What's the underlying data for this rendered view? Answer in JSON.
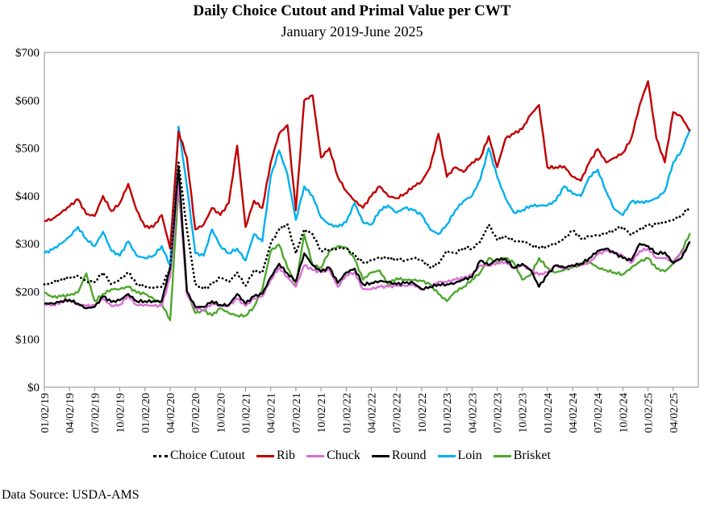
{
  "chart_data": {
    "type": "line",
    "title": "Daily Choice Cutout and Primal Value per CWT",
    "subtitle": "January 2019-June 2025",
    "xlabel": "",
    "ylabel": "",
    "ylim": [
      0,
      700
    ],
    "yticks": [
      "$0",
      "$100",
      "$200",
      "$300",
      "$400",
      "$500",
      "$600",
      "$700"
    ],
    "xlim": [
      "2019-01-02",
      "2025-06-30"
    ],
    "xticks": [
      "01/02/19",
      "04/02/19",
      "07/02/19",
      "10/02/19",
      "01/02/20",
      "04/02/20",
      "07/02/20",
      "10/02/20",
      "01/02/21",
      "04/02/21",
      "07/02/21",
      "10/02/21",
      "01/02/22",
      "04/02/22",
      "07/02/22",
      "10/02/22",
      "01/02/23",
      "04/02/23",
      "07/02/23",
      "10/02/23",
      "01/02/24",
      "04/02/24",
      "07/02/24",
      "10/02/24",
      "01/02/25",
      "04/02/25"
    ],
    "grid": false,
    "legend_position": "bottom",
    "x_start_month": "2019-01",
    "x_resolution": "monthly (approximate)",
    "series": [
      {
        "name": "Choice Cutout",
        "color": "#000000",
        "style": "dotted",
        "values": [
          215,
          218,
          225,
          228,
          233,
          222,
          220,
          240,
          215,
          225,
          240,
          215,
          210,
          208,
          210,
          250,
          470,
          330,
          215,
          205,
          215,
          230,
          220,
          240,
          212,
          245,
          240,
          300,
          330,
          340,
          280,
          330,
          320,
          285,
          288,
          290,
          290,
          275,
          260,
          265,
          272,
          270,
          268,
          265,
          270,
          265,
          250,
          258,
          285,
          280,
          292,
          290,
          305,
          340,
          308,
          315,
          305,
          305,
          298,
          292,
          295,
          300,
          310,
          328,
          310,
          315,
          318,
          322,
          330,
          335,
          318,
          330,
          338,
          340,
          345,
          350,
          360,
          378
        ]
      },
      {
        "name": "Rib",
        "color": "#C00000",
        "style": "solid",
        "values": [
          348,
          352,
          365,
          378,
          393,
          362,
          358,
          400,
          368,
          385,
          425,
          370,
          335,
          335,
          360,
          290,
          535,
          480,
          330,
          340,
          375,
          360,
          385,
          505,
          335,
          390,
          375,
          470,
          530,
          548,
          370,
          600,
          610,
          480,
          500,
          440,
          410,
          390,
          375,
          400,
          420,
          400,
          395,
          405,
          420,
          430,
          460,
          530,
          440,
          460,
          450,
          470,
          480,
          525,
          460,
          520,
          530,
          540,
          570,
          590,
          460,
          460,
          462,
          440,
          432,
          470,
          498,
          470,
          480,
          490,
          520,
          590,
          640,
          520,
          470,
          575,
          565,
          535
        ]
      },
      {
        "name": "Chuck",
        "color": "#DA70D6",
        "style": "solid",
        "values": [
          175,
          172,
          178,
          182,
          172,
          170,
          170,
          185,
          170,
          172,
          192,
          172,
          172,
          170,
          170,
          230,
          430,
          195,
          165,
          162,
          175,
          170,
          170,
          185,
          170,
          185,
          190,
          225,
          250,
          230,
          210,
          255,
          245,
          240,
          245,
          210,
          235,
          240,
          205,
          205,
          210,
          210,
          212,
          212,
          215,
          205,
          210,
          220,
          220,
          225,
          228,
          235,
          255,
          255,
          260,
          262,
          248,
          255,
          245,
          235,
          240,
          255,
          248,
          255,
          255,
          260,
          278,
          285,
          282,
          275,
          260,
          285,
          290,
          270,
          270,
          262,
          280,
          300
        ]
      },
      {
        "name": "Round",
        "color": "#000000",
        "style": "solid",
        "values": [
          175,
          175,
          180,
          183,
          175,
          165,
          168,
          190,
          178,
          182,
          195,
          180,
          180,
          180,
          180,
          250,
          460,
          200,
          168,
          168,
          180,
          172,
          172,
          195,
          175,
          190,
          195,
          230,
          258,
          238,
          222,
          280,
          255,
          242,
          250,
          218,
          240,
          248,
          215,
          218,
          222,
          220,
          215,
          218,
          218,
          205,
          210,
          215,
          215,
          218,
          225,
          230,
          265,
          255,
          268,
          268,
          250,
          258,
          245,
          210,
          235,
          255,
          250,
          255,
          258,
          270,
          285,
          290,
          280,
          270,
          265,
          300,
          295,
          280,
          282,
          260,
          270,
          305
        ]
      },
      {
        "name": "Loin",
        "color": "#00B0F0",
        "style": "solid",
        "values": [
          280,
          288,
          300,
          315,
          335,
          310,
          295,
          325,
          285,
          275,
          305,
          275,
          270,
          275,
          295,
          255,
          545,
          420,
          280,
          275,
          330,
          295,
          280,
          290,
          265,
          320,
          305,
          440,
          495,
          445,
          350,
          420,
          400,
          355,
          340,
          335,
          345,
          385,
          345,
          340,
          370,
          380,
          365,
          375,
          370,
          360,
          330,
          320,
          340,
          370,
          390,
          400,
          435,
          500,
          440,
          395,
          365,
          370,
          380,
          380,
          380,
          390,
          420,
          405,
          400,
          440,
          455,
          410,
          372,
          360,
          388,
          386,
          388,
          395,
          410,
          470,
          495,
          540
        ]
      },
      {
        "name": "Brisket",
        "color": "#4EA72E",
        "style": "solid",
        "values": [
          198,
          188,
          190,
          192,
          198,
          238,
          180,
          195,
          205,
          205,
          210,
          198,
          195,
          185,
          175,
          140,
          420,
          200,
          155,
          160,
          150,
          165,
          155,
          150,
          150,
          168,
          205,
          285,
          298,
          250,
          215,
          320,
          255,
          250,
          285,
          295,
          292,
          268,
          225,
          240,
          244,
          215,
          228,
          225,
          224,
          222,
          215,
          195,
          180,
          200,
          210,
          225,
          240,
          270,
          260,
          270,
          260,
          225,
          235,
          270,
          250,
          240,
          245,
          250,
          258,
          262,
          250,
          245,
          240,
          236,
          250,
          262,
          270,
          248,
          242,
          258,
          285,
          322
        ]
      }
    ]
  },
  "legend": {
    "items": [
      "Choice Cutout",
      "Rib",
      "Chuck",
      "Round",
      "Loin",
      "Brisket"
    ]
  },
  "footer": {
    "source": "Data Source: USDA-AMS"
  }
}
